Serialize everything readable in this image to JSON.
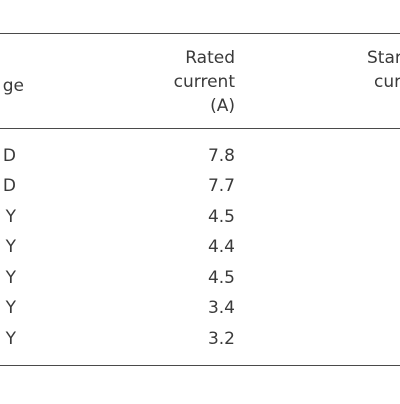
{
  "table": {
    "headers": {
      "voltage": "ge",
      "rated_current": [
        "Rated",
        "current",
        "(A)"
      ],
      "start": [
        "Star",
        "cur"
      ]
    },
    "rows": [
      {
        "voltage": "D",
        "rated_current": "7.8"
      },
      {
        "voltage": "D",
        "rated_current": "7.7"
      },
      {
        "voltage": "Y",
        "rated_current": "4.5"
      },
      {
        "voltage": "Y",
        "rated_current": "4.4"
      },
      {
        "voltage": "Y",
        "rated_current": "4.5"
      },
      {
        "voltage": "Y",
        "rated_current": "3.4"
      },
      {
        "voltage": "Y",
        "rated_current": "3.2"
      }
    ]
  }
}
